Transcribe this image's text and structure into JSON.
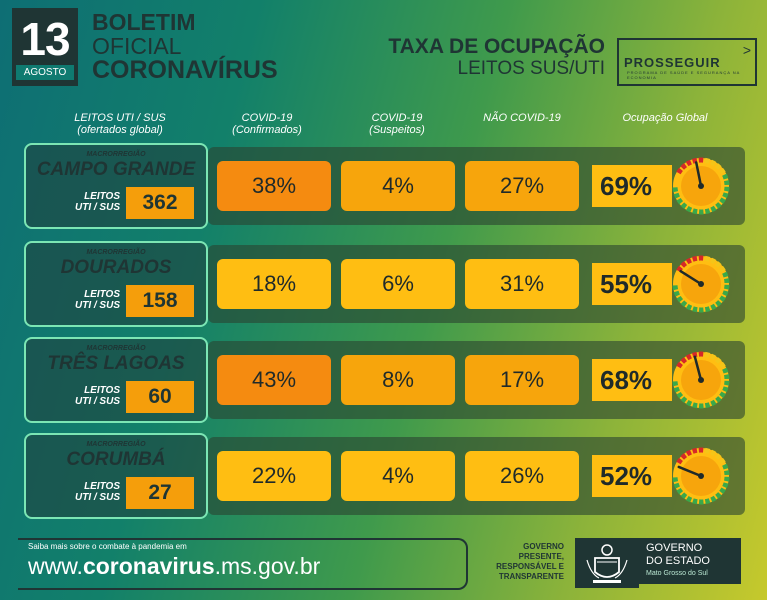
{
  "header": {
    "day": "13",
    "month": "AGOSTO",
    "title_line1": "BOLETIM",
    "title_line2": "OFICIAL",
    "title_line3": "CORONAVÍRUS",
    "taxa_line1": "TAXA DE OCUPAÇÃO",
    "taxa_line2": "LEITOS SUS/UTI",
    "logo_word": "PROSSEGUIR",
    "logo_sub": "PROGRAMA DE SAÚDE E SEGURANÇA NA ECONOMIA"
  },
  "columns": {
    "leitos_line1": "LEITOS UTI / SUS",
    "leitos_line2": "(ofertados global)",
    "conf_line1": "COVID-19",
    "conf_line2": "(Confirmados)",
    "susp_line1": "COVID-19",
    "susp_line2": "(Suspeitos)",
    "nao_covid": "NÃO COVID-19",
    "global": "Ocupação Global"
  },
  "rows": [
    {
      "macro_label": "MACRORREGIÃO",
      "region": "CAMPO GRANDE",
      "leitos_l1": "LEITOS",
      "leitos_l2": "UTI / SUS",
      "beds": "362",
      "confirmed": "38%",
      "suspected": "4%",
      "non_covid": "27%",
      "global": "69%",
      "global_value": 0.69
    },
    {
      "macro_label": "MACRORREGIÃO",
      "region": "DOURADOS",
      "leitos_l1": "LEITOS",
      "leitos_l2": "UTI / SUS",
      "beds": "158",
      "confirmed": "18%",
      "suspected": "6%",
      "non_covid": "31%",
      "global": "55%",
      "global_value": 0.55
    },
    {
      "macro_label": "MACRORREGIÃO",
      "region": "TRÊS LAGOAS",
      "leitos_l1": "LEITOS",
      "leitos_l2": "UTI / SUS",
      "beds": "60",
      "confirmed": "43%",
      "suspected": "8%",
      "non_covid": "17%",
      "global": "68%",
      "global_value": 0.68
    },
    {
      "macro_label": "MACRORREGIÃO",
      "region": "CORUMBÁ",
      "leitos_l1": "LEITOS",
      "leitos_l2": "UTI / SUS",
      "beds": "27",
      "confirmed": "22%",
      "suspected": "4%",
      "non_covid": "26%",
      "global": "52%",
      "global_value": 0.52
    }
  ],
  "footer": {
    "saiba": "Saiba mais sobre o combate à pandemia em",
    "site_prefix": "www.",
    "site_bold": "coronavirus",
    "site_suffix": ".ms.gov.br",
    "gov_line1": "GOVERNO",
    "gov_line2": "PRESENTE,",
    "gov_line3": "RESPONSÁVEL E",
    "gov_line4": "TRANSPARENTE",
    "estado_line1": "GOVERNO",
    "estado_line2": "DO ESTADO",
    "estado_line3": "Mato Grosso do Sul"
  },
  "colors": {
    "confirmed": "#f58b10",
    "suspected": "#f7a50c",
    "non_covid": "#ffbe12",
    "gauge_green": "#3aa84a",
    "gauge_yellow": "#f5c518",
    "gauge_red": "#d62828"
  }
}
